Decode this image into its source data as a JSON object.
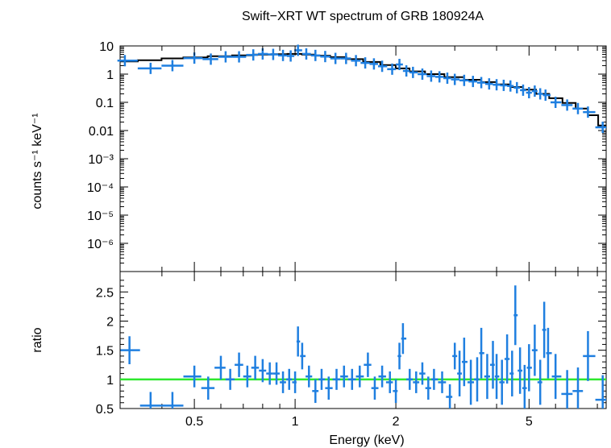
{
  "chart_data": [
    {
      "type": "scatter",
      "panel": "spectrum",
      "title": "Swift−XRT WT spectrum of GRB 180924A",
      "xlabel": "",
      "ylabel": "counts s⁻¹ keV⁻¹",
      "xscale": "log",
      "yscale": "log",
      "xlim": [
        0.3,
        8.5
      ],
      "ylim": [
        1e-07,
        10
      ],
      "y_ticks": [
        {
          "value": 10,
          "label": "10"
        },
        {
          "value": 1,
          "label": "1"
        },
        {
          "value": 0.1,
          "label": "0.1"
        },
        {
          "value": 0.01,
          "label": "0.01"
        },
        {
          "value": 0.001,
          "label": "10⁻³"
        },
        {
          "value": 0.0001,
          "label": "10⁻⁴"
        },
        {
          "value": 1e-05,
          "label": "10⁻⁵"
        },
        {
          "value": 1e-06,
          "label": "10⁻⁶"
        }
      ],
      "series": [
        {
          "kind": "data",
          "color": "#1f7fe0",
          "x": [
            0.31,
            0.37,
            0.43,
            0.5,
            0.56,
            0.62,
            0.68,
            0.75,
            0.8,
            0.86,
            0.92,
            0.97,
            1.02,
            1.08,
            1.15,
            1.23,
            1.32,
            1.42,
            1.52,
            1.62,
            1.72,
            1.82,
            1.95,
            2.05,
            2.15,
            2.25,
            2.4,
            2.55,
            2.7,
            2.85,
            3.0,
            3.2,
            3.4,
            3.6,
            3.8,
            4.0,
            4.2,
            4.4,
            4.6,
            4.8,
            5.0,
            5.2,
            5.4,
            5.6,
            6.0,
            6.5,
            7.0,
            7.5,
            8.3
          ],
          "y": [
            3.0,
            1.6,
            2.0,
            3.7,
            3.4,
            4.1,
            4.1,
            4.8,
            5.2,
            5.0,
            4.6,
            4.4,
            7.0,
            5.2,
            4.6,
            4.2,
            3.6,
            3.6,
            3.0,
            2.5,
            2.3,
            1.9,
            1.5,
            2.2,
            1.3,
            1.15,
            1.0,
            0.85,
            0.8,
            0.72,
            0.65,
            0.6,
            0.55,
            0.5,
            0.45,
            0.42,
            0.4,
            0.38,
            0.33,
            0.27,
            0.22,
            0.25,
            0.2,
            0.18,
            0.1,
            0.08,
            0.06,
            0.045,
            0.013
          ]
        },
        {
          "kind": "model",
          "color": "#000000",
          "x": [
            0.31,
            0.37,
            0.43,
            0.5,
            0.6,
            0.7,
            0.8,
            0.9,
            1.0,
            1.1,
            1.2,
            1.35,
            1.5,
            1.7,
            1.9,
            2.1,
            2.3,
            2.6,
            3.0,
            3.4,
            3.8,
            4.2,
            4.6,
            5.0,
            5.5,
            6.0,
            6.6,
            7.2,
            7.8,
            8.3
          ],
          "y": [
            2.8,
            3.1,
            3.6,
            3.9,
            4.3,
            4.6,
            4.9,
            5.1,
            5.2,
            4.9,
            4.5,
            4.0,
            3.4,
            2.7,
            2.1,
            1.6,
            1.25,
            1.0,
            0.78,
            0.63,
            0.52,
            0.43,
            0.35,
            0.28,
            0.2,
            0.14,
            0.095,
            0.06,
            0.035,
            0.015
          ]
        }
      ]
    },
    {
      "type": "scatter",
      "panel": "ratio",
      "xlabel": "Energy (keV)",
      "ylabel": "ratio",
      "xscale": "log",
      "xlim": [
        0.3,
        8.5
      ],
      "ylim": [
        0.5,
        2.85
      ],
      "x_ticks": [
        {
          "value": 0.5,
          "label": "0.5"
        },
        {
          "value": 1,
          "label": "1"
        },
        {
          "value": 2,
          "label": "2"
        },
        {
          "value": 5,
          "label": "5"
        }
      ],
      "y_ticks": [
        {
          "value": 0.5,
          "label": "0.5"
        },
        {
          "value": 1,
          "label": "1"
        },
        {
          "value": 1.5,
          "label": "1.5"
        },
        {
          "value": 2,
          "label": "2"
        },
        {
          "value": 2.5,
          "label": "2.5"
        }
      ],
      "reference_line": {
        "value": 1.0,
        "color": "#2ee82e"
      },
      "series": [
        {
          "kind": "data",
          "color": "#1f7fe0",
          "x": [
            0.32,
            0.37,
            0.43,
            0.5,
            0.55,
            0.6,
            0.64,
            0.68,
            0.72,
            0.76,
            0.8,
            0.84,
            0.88,
            0.92,
            0.96,
            1.0,
            1.02,
            1.05,
            1.1,
            1.15,
            1.2,
            1.26,
            1.33,
            1.4,
            1.48,
            1.56,
            1.65,
            1.73,
            1.82,
            1.92,
            2.0,
            2.05,
            2.1,
            2.2,
            2.3,
            2.4,
            2.5,
            2.6,
            2.75,
            2.9,
            3.0,
            3.1,
            3.2,
            3.35,
            3.5,
            3.6,
            3.75,
            3.9,
            4.0,
            4.15,
            4.3,
            4.45,
            4.55,
            4.7,
            4.85,
            5.0,
            5.2,
            5.4,
            5.55,
            5.7,
            6.0,
            6.5,
            7.0,
            7.5,
            8.3
          ],
          "y": [
            1.5,
            0.55,
            0.55,
            1.05,
            0.85,
            1.2,
            1.0,
            1.25,
            1.05,
            1.2,
            1.15,
            1.1,
            1.1,
            0.95,
            1.0,
            0.95,
            1.65,
            1.4,
            1.05,
            0.8,
            1.0,
            0.85,
            1.0,
            1.05,
            1.0,
            1.05,
            1.25,
            0.85,
            1.05,
            0.95,
            0.8,
            1.4,
            1.7,
            1.0,
            0.95,
            1.1,
            0.85,
            1.0,
            0.95,
            0.7,
            1.4,
            1.1,
            1.3,
            0.95,
            1.0,
            1.45,
            1.05,
            1.25,
            1.05,
            0.95,
            1.35,
            1.1,
            2.1,
            1.15,
            0.85,
            1.2,
            1.5,
            0.95,
            1.85,
            1.45,
            1.05,
            0.75,
            0.8,
            1.4,
            0.65
          ]
        }
      ]
    }
  ]
}
